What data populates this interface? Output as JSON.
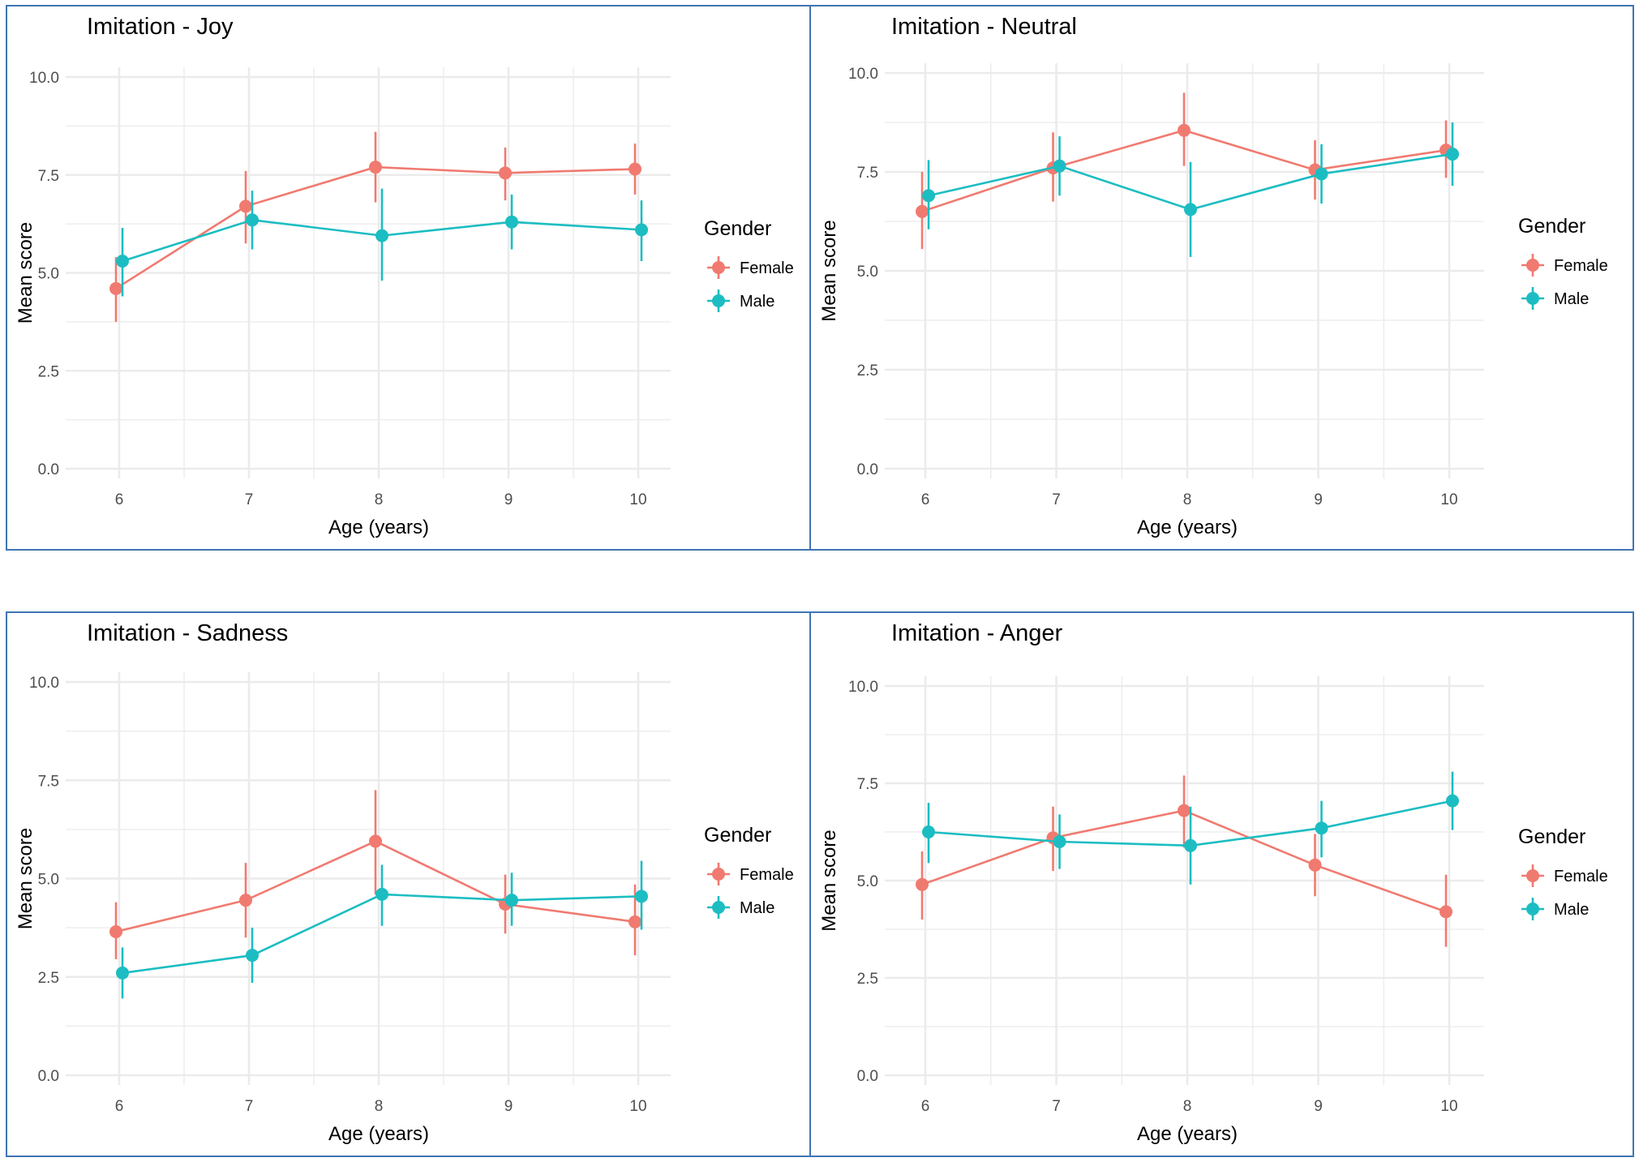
{
  "legend": {
    "title": "Gender",
    "entries": [
      "Female",
      "Male"
    ],
    "colors": {
      "Female": "#f07a70",
      "Male": "#1cbdc2"
    }
  },
  "chart_data": [
    {
      "type": "line",
      "title": "Imitation - Joy",
      "xlabel": "Age (years)",
      "ylabel": "Mean score",
      "ylim": [
        0,
        10
      ],
      "x": [
        6,
        7,
        8,
        9,
        10
      ],
      "y_ticks": [
        "0.0",
        "2.5",
        "5.0",
        "7.5",
        "10.0"
      ],
      "x_ticks": [
        "6",
        "7",
        "8",
        "9",
        "10"
      ],
      "grid": true,
      "legend_position": "right",
      "series": [
        {
          "name": "Female",
          "values": [
            4.6,
            6.7,
            7.7,
            7.55,
            7.65
          ],
          "lower": [
            3.75,
            5.75,
            6.8,
            6.85,
            7.0
          ],
          "upper": [
            5.4,
            7.6,
            8.6,
            8.2,
            8.3
          ]
        },
        {
          "name": "Male",
          "values": [
            5.3,
            6.35,
            5.95,
            6.3,
            6.1
          ],
          "lower": [
            4.4,
            5.6,
            4.8,
            5.6,
            5.3
          ],
          "upper": [
            6.15,
            7.1,
            7.15,
            7.0,
            6.85
          ]
        }
      ]
    },
    {
      "type": "line",
      "title": "Imitation - Neutral",
      "xlabel": "Age (years)",
      "ylabel": "Mean score",
      "ylim": [
        0,
        10
      ],
      "x": [
        6,
        7,
        8,
        9,
        10
      ],
      "y_ticks": [
        "0.0",
        "2.5",
        "5.0",
        "7.5",
        "10.0"
      ],
      "x_ticks": [
        "6",
        "7",
        "8",
        "9",
        "10"
      ],
      "grid": true,
      "legend_position": "right",
      "series": [
        {
          "name": "Female",
          "values": [
            6.5,
            7.6,
            8.55,
            7.55,
            8.05
          ],
          "lower": [
            5.55,
            6.75,
            7.65,
            6.8,
            7.35
          ],
          "upper": [
            7.5,
            8.5,
            9.5,
            8.3,
            8.8
          ]
        },
        {
          "name": "Male",
          "values": [
            6.9,
            7.65,
            6.55,
            7.45,
            7.95
          ],
          "lower": [
            6.05,
            6.9,
            5.35,
            6.7,
            7.15
          ],
          "upper": [
            7.8,
            8.4,
            7.75,
            8.2,
            8.75
          ]
        }
      ]
    },
    {
      "type": "line",
      "title": "Imitation - Sadness",
      "xlabel": "Age (years)",
      "ylabel": "Mean score",
      "ylim": [
        0,
        10
      ],
      "x": [
        6,
        7,
        8,
        9,
        10
      ],
      "y_ticks": [
        "0.0",
        "2.5",
        "5.0",
        "7.5",
        "10.0"
      ],
      "x_ticks": [
        "6",
        "7",
        "8",
        "9",
        "10"
      ],
      "grid": true,
      "legend_position": "right",
      "series": [
        {
          "name": "Female",
          "values": [
            3.65,
            4.45,
            5.95,
            4.35,
            3.9
          ],
          "lower": [
            2.95,
            3.5,
            4.6,
            3.6,
            3.05
          ],
          "upper": [
            4.4,
            5.4,
            7.25,
            5.1,
            4.85
          ]
        },
        {
          "name": "Male",
          "values": [
            2.6,
            3.05,
            4.6,
            4.45,
            4.55
          ],
          "lower": [
            1.95,
            2.35,
            3.8,
            3.8,
            3.7
          ],
          "upper": [
            3.25,
            3.75,
            5.35,
            5.15,
            5.45
          ]
        }
      ]
    },
    {
      "type": "line",
      "title": "Imitation - Anger",
      "xlabel": "Age (years)",
      "ylabel": "Mean score",
      "ylim": [
        0,
        10
      ],
      "x": [
        6,
        7,
        8,
        9,
        10
      ],
      "y_ticks": [
        "0.0",
        "2.5",
        "5.0",
        "7.5",
        "10.0"
      ],
      "x_ticks": [
        "6",
        "7",
        "8",
        "9",
        "10"
      ],
      "grid": true,
      "legend_position": "right",
      "series": [
        {
          "name": "Female",
          "values": [
            4.9,
            6.1,
            6.8,
            5.4,
            4.2
          ],
          "lower": [
            4.0,
            5.25,
            5.85,
            4.6,
            3.3
          ],
          "upper": [
            5.75,
            6.9,
            7.7,
            6.2,
            5.15
          ]
        },
        {
          "name": "Male",
          "values": [
            6.25,
            6.0,
            5.9,
            6.35,
            7.05
          ],
          "lower": [
            5.45,
            5.3,
            4.9,
            5.6,
            6.3
          ],
          "upper": [
            7.0,
            6.7,
            6.9,
            7.05,
            7.8
          ]
        }
      ]
    }
  ]
}
